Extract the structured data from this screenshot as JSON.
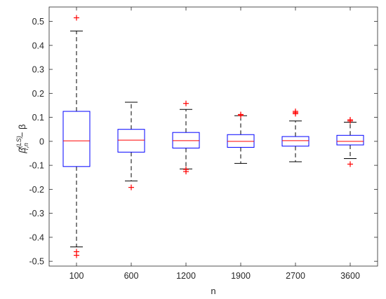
{
  "chart_data": {
    "type": "box",
    "categories": [
      "100",
      "600",
      "1200",
      "1900",
      "2700",
      "3600"
    ],
    "xlabel": "n",
    "ylabel": "β̂(LS)r,n − β",
    "ylabel_parts": {
      "base": "β̂",
      "super": "(LS)",
      "sub": "r,n",
      "tail": "− β"
    },
    "ylim": [
      -0.52,
      0.56
    ],
    "yticks": [
      -0.5,
      -0.4,
      -0.3,
      -0.2,
      -0.1,
      0,
      0.1,
      0.2,
      0.3,
      0.4,
      0.5
    ],
    "ytick_labels": [
      "-0.5",
      "-0.4",
      "-0.3",
      "-0.2",
      "-0.1",
      "0",
      "0.1",
      "0.2",
      "0.3",
      "0.4",
      "0.5"
    ],
    "grid": false,
    "boxes": [
      {
        "category": "100",
        "whisker_low": -0.44,
        "q1": -0.105,
        "median": 0.002,
        "q3": 0.125,
        "whisker_high": 0.46,
        "outliers": [
          0.515,
          -0.46,
          -0.475
        ]
      },
      {
        "category": "600",
        "whisker_low": -0.165,
        "q1": -0.045,
        "median": 0.005,
        "q3": 0.05,
        "whisker_high": 0.163,
        "outliers": [
          -0.192
        ]
      },
      {
        "category": "1200",
        "whisker_low": -0.115,
        "q1": -0.028,
        "median": 0.003,
        "q3": 0.037,
        "whisker_high": 0.133,
        "outliers": [
          0.158,
          -0.117,
          -0.126
        ]
      },
      {
        "category": "1900",
        "whisker_low": -0.092,
        "q1": -0.025,
        "median": 0.0,
        "q3": 0.028,
        "whisker_high": 0.107,
        "outliers": [
          0.112,
          0.108
        ]
      },
      {
        "category": "2700",
        "whisker_low": -0.085,
        "q1": -0.02,
        "median": 0.003,
        "q3": 0.02,
        "whisker_high": 0.085,
        "outliers": [
          0.12,
          0.125,
          0.115
        ]
      },
      {
        "category": "3600",
        "whisker_low": -0.072,
        "q1": -0.015,
        "median": 0.0,
        "q3": 0.025,
        "whisker_high": 0.08,
        "outliers": [
          0.09,
          0.085,
          -0.095
        ]
      }
    ],
    "colors": {
      "box": "#0000ff",
      "median": "#ff0000",
      "whisker": "#000000",
      "outlier": "#ff0000"
    }
  }
}
